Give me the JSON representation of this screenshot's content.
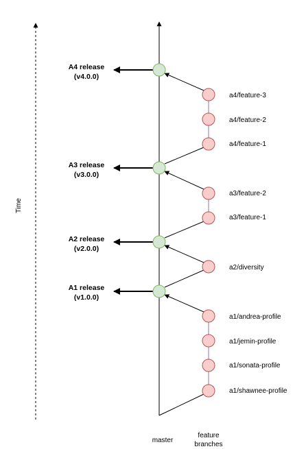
{
  "time_axis": {
    "label": "Time"
  },
  "columns": {
    "master": "master",
    "feature_line1": "feature",
    "feature_line2": "branches"
  },
  "colors": {
    "master_node_fill": "#d5e8d4",
    "master_node_stroke": "#82b366",
    "feature_node_fill": "#f8cecc",
    "feature_node_stroke": "#b85450",
    "branch_link": "#9673a6"
  },
  "releases": [
    {
      "line1": "A4 release",
      "line2": "(v4.0.0)"
    },
    {
      "line1": "A3 release",
      "line2": "(v3.0.0)"
    },
    {
      "line1": "A2 release",
      "line2": "(v2.0.0)"
    },
    {
      "line1": "A1 release",
      "line2": "(v1.0.0)"
    }
  ],
  "feature_branches": [
    {
      "label": "a4/feature-3"
    },
    {
      "label": "a4/feature-2"
    },
    {
      "label": "a4/feature-1"
    },
    {
      "label": "a3/feature-2"
    },
    {
      "label": "a3/feature-1"
    },
    {
      "label": "a2/diversity"
    },
    {
      "label": "a1/andrea-profile"
    },
    {
      "label": "a1/jemin-profile"
    },
    {
      "label": "a1/sonata-profile"
    },
    {
      "label": "a1/shawnee-profile"
    }
  ]
}
